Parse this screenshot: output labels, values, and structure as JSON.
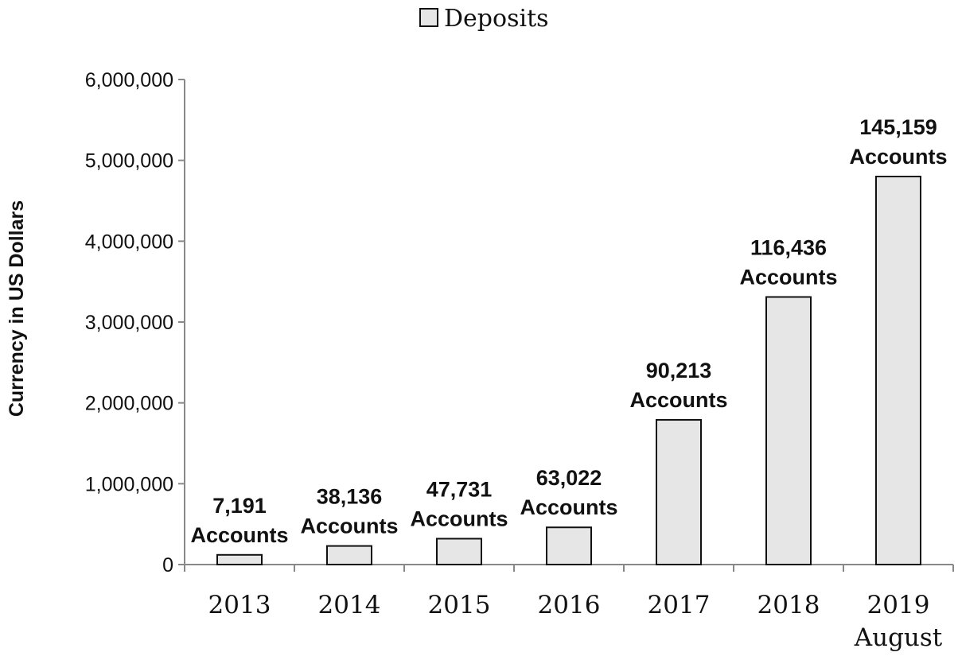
{
  "chart_data": {
    "type": "bar",
    "title": "",
    "xlabel": "",
    "ylabel": "Currency in US Dollars",
    "ylim": [
      0,
      6000000
    ],
    "yticks": [
      0,
      1000000,
      2000000,
      3000000,
      4000000,
      5000000,
      6000000
    ],
    "ytick_labels": [
      "0",
      "1,000,000",
      "2,000,000",
      "3,000,000",
      "4,000,000",
      "5,000,000",
      "6,000,000"
    ],
    "grid": false,
    "legend_position": "top-center",
    "categories": [
      [
        "2013"
      ],
      [
        "2014"
      ],
      [
        "2015"
      ],
      [
        "2016"
      ],
      [
        "2017"
      ],
      [
        "2018"
      ],
      [
        "2019",
        "August"
      ]
    ],
    "series": [
      {
        "name": "Deposits",
        "color": "#e6e6e6",
        "values": [
          120000,
          230000,
          320000,
          460000,
          1790000,
          3310000,
          4800000
        ]
      }
    ],
    "data_labels": [
      [
        "7,191",
        "Accounts"
      ],
      [
        "38,136",
        "Accounts"
      ],
      [
        "47,731",
        "Accounts"
      ],
      [
        "63,022",
        "Accounts"
      ],
      [
        "90,213",
        "Accounts"
      ],
      [
        "116,436",
        "Accounts"
      ],
      [
        "145,159",
        "Accounts"
      ]
    ]
  }
}
